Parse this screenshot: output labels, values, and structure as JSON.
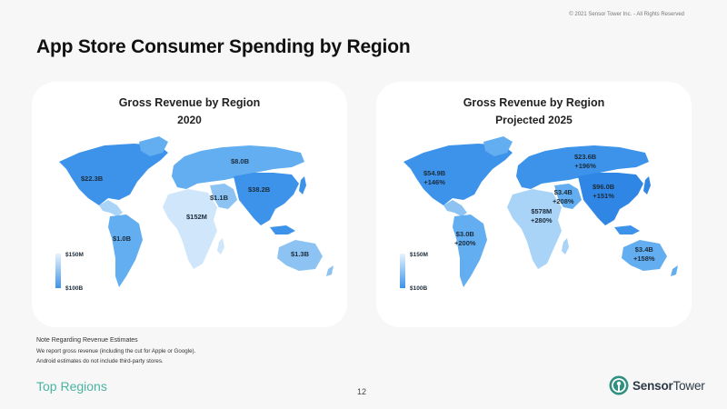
{
  "copyright": "© 2021 Sensor Tower Inc. - All Rights Reserved",
  "page_title": "App Store Consumer Spending by Region",
  "colors": {
    "very_light": "#cfe6fb",
    "light": "#a9d3f7",
    "medium_light": "#8cc3f3",
    "medium": "#63aef0",
    "dark": "#3d93ea",
    "footer_accent": "#4bb3a2"
  },
  "cards": [
    {
      "title": "Gross Revenue by Region",
      "subtitle": "2020",
      "legend": {
        "top": "$150M",
        "bottom": "$100B"
      },
      "regions": {
        "north_america": {
          "value": "$22.3B",
          "change": ""
        },
        "latin_america": {
          "value": "$1.0B",
          "change": ""
        },
        "europe_russia": {
          "value": "$8.0B",
          "change": ""
        },
        "middle_east": {
          "value": "$1.1B",
          "change": ""
        },
        "africa": {
          "value": "$152M",
          "change": ""
        },
        "asia": {
          "value": "$38.2B",
          "change": ""
        },
        "oceania": {
          "value": "$1.3B",
          "change": ""
        }
      }
    },
    {
      "title": "Gross Revenue by Region",
      "subtitle": "Projected 2025",
      "legend": {
        "top": "$150M",
        "bottom": "$100B"
      },
      "regions": {
        "north_america": {
          "value": "$54.9B",
          "change": "+146%"
        },
        "latin_america": {
          "value": "$3.0B",
          "change": "+200%"
        },
        "europe_russia": {
          "value": "$23.6B",
          "change": "+196%"
        },
        "middle_east": {
          "value": "$3.4B",
          "change": "+208%"
        },
        "africa": {
          "value": "$578M",
          "change": "+280%"
        },
        "asia": {
          "value": "$96.0B",
          "change": "+151%"
        },
        "oceania": {
          "value": "$3.4B",
          "change": "+158%"
        }
      }
    }
  ],
  "notes": {
    "title": "Note Regarding Revenue Estimates",
    "line1": "We report gross revenue (including the cut for Apple or Google).",
    "line2": "Android estimates do not include third-party stores."
  },
  "footer": {
    "section": "Top Regions",
    "page_number": "12",
    "logo_sensor": "Sensor",
    "logo_tower": "Tower"
  }
}
